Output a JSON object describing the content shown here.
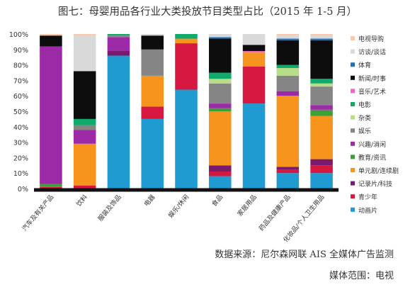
{
  "chart_data": {
    "type": "bar",
    "stacked": true,
    "title": "图七：母婴用品各行业大类投放节目类型占比（2015 年 1-5 月）",
    "ylim": [
      0,
      100
    ],
    "yticks": [
      "0%",
      "10%",
      "20%",
      "30%",
      "40%",
      "50%",
      "60%",
      "70%",
      "80%",
      "90%",
      "100%"
    ],
    "grid": false,
    "legend": "right",
    "categories": [
      "汽车及有关产品",
      "饮料",
      "服装及饰品",
      "电器",
      "娱乐/休闲",
      "食品",
      "家居用品",
      "药品及健康产品",
      "化妆品/个人卫生用品"
    ],
    "series": [
      {
        "name": "动画片",
        "color": "#1f9bd1",
        "values": [
          0,
          0,
          86,
          45,
          64,
          8,
          55,
          10,
          10
        ]
      },
      {
        "name": "青少年",
        "color": "#d6173f",
        "values": [
          1,
          2,
          0,
          8,
          30,
          3,
          24,
          2,
          5
        ]
      },
      {
        "name": "记录片/科技",
        "color": "#7a1a6f",
        "values": [
          0,
          0,
          3,
          0,
          0,
          4,
          0,
          2,
          4
        ]
      },
      {
        "name": "单元剧/连续剧",
        "color": "#f7941d",
        "values": [
          0,
          27,
          0,
          20,
          3,
          35,
          9,
          46,
          28
        ]
      },
      {
        "name": "教育/资讯",
        "color": "#3f9e3a",
        "values": [
          2,
          0,
          0,
          0,
          0,
          2,
          0,
          0,
          4
        ]
      },
      {
        "name": "兴趣/消闲",
        "color": "#9c2aa6",
        "values": [
          89,
          9,
          9,
          0,
          0,
          3,
          0,
          3,
          3
        ]
      },
      {
        "name": "娱乐",
        "color": "#858585",
        "values": [
          0,
          3,
          1,
          17,
          0,
          13,
          0,
          10,
          12
        ]
      },
      {
        "name": "杂类",
        "color": "#b8dd88",
        "values": [
          0,
          0,
          0,
          0,
          0,
          3,
          0,
          5,
          2
        ]
      },
      {
        "name": "电影",
        "color": "#10aa6c",
        "values": [
          0,
          4,
          1,
          0,
          3,
          4,
          0,
          2,
          3
        ]
      },
      {
        "name": "音乐/艺术",
        "color": "#ee68c4",
        "values": [
          0,
          0,
          0,
          0,
          0,
          0,
          1,
          0,
          0
        ]
      },
      {
        "name": "新闻/时事",
        "color": "#0d0d0d",
        "values": [
          7,
          31,
          0,
          9,
          0,
          22,
          4,
          16,
          25
        ]
      },
      {
        "name": "体育",
        "color": "#1b73b8",
        "values": [
          0,
          0,
          0,
          0,
          0,
          1,
          0,
          1,
          1
        ]
      },
      {
        "name": "访谈/谈话",
        "color": "#d9d9d9",
        "values": [
          0,
          23,
          0,
          1,
          0,
          2,
          7,
          2,
          2
        ]
      },
      {
        "name": "电视导购",
        "color": "#f9c8a8",
        "values": [
          1,
          1,
          0,
          0,
          0,
          0,
          0,
          1,
          1
        ]
      }
    ]
  },
  "footer": {
    "source": "数据来源：尼尔森网联 AIS 全媒体广告监测",
    "scope": "媒体范围：电视"
  }
}
